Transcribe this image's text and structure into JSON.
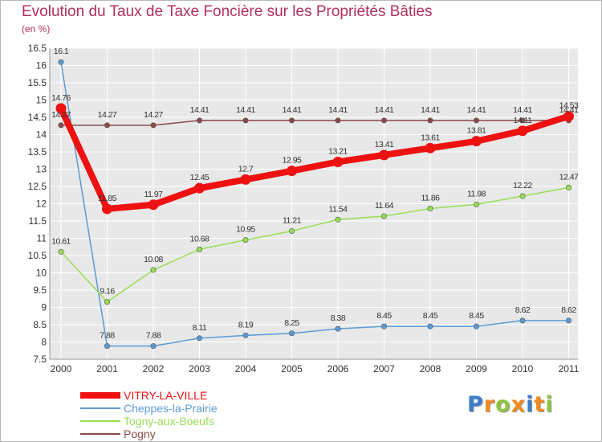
{
  "chart_data": {
    "type": "line",
    "title": "Evolution du Taux de Taxe Foncière sur les Propriétés Bâties",
    "ylabel": "(en %)",
    "xlabel": "",
    "x": [
      "2000",
      "2001",
      "2002",
      "2003",
      "2004",
      "2005",
      "2006",
      "2007",
      "2008",
      "2009",
      "2010",
      "2011"
    ],
    "ylim": [
      7.5,
      16.5
    ],
    "yticks": [
      7.5,
      8,
      8.5,
      9,
      9.5,
      10,
      10.5,
      11,
      11.5,
      12,
      12.5,
      13,
      13.5,
      14,
      14.5,
      15,
      15.5,
      16,
      16.5
    ],
    "ytick_labels": [
      "7.5",
      "8",
      "8.5",
      "9",
      "9.5",
      "10",
      "10.5",
      "11",
      "11.5",
      "12",
      "12.5",
      "13",
      "13.5",
      "14",
      "14.5",
      "15",
      "15.5",
      "16",
      "16.5"
    ],
    "grid": true,
    "series": [
      {
        "name": "VITRY-LA-VILLE",
        "color": "#ee1111",
        "values": [
          14.76,
          11.85,
          11.97,
          12.45,
          12.7,
          12.95,
          13.21,
          13.41,
          13.61,
          13.81,
          14.11,
          14.53
        ],
        "labels": [
          "14.76",
          "11.85",
          "11.97",
          "12.45",
          "12.7",
          "12.95",
          "13.21",
          "13.41",
          "13.61",
          "13.81",
          "14.11",
          "14.53"
        ]
      },
      {
        "name": "Cheppes-la-Prairie",
        "color": "#5b9bd5",
        "values": [
          16.1,
          7.88,
          7.88,
          8.11,
          8.19,
          8.25,
          8.38,
          8.45,
          8.45,
          8.45,
          8.62,
          8.62
        ],
        "labels": [
          "16.1",
          "7.88",
          "7.88",
          "8.11",
          "8.19",
          "8.25",
          "8.38",
          "8.45",
          "8.45",
          "8.45",
          "8.62",
          "8.62"
        ]
      },
      {
        "name": "Togny-aux-Boeufs",
        "color": "#99dd55",
        "values": [
          10.61,
          9.16,
          10.08,
          10.68,
          10.95,
          11.21,
          11.54,
          11.64,
          11.86,
          11.98,
          12.22,
          12.47
        ],
        "labels": [
          "10.61",
          "9.16",
          "10.08",
          "10.68",
          "10.95",
          "11.21",
          "11.54",
          "11.64",
          "11.86",
          "11.98",
          "12.22",
          "12.47"
        ]
      },
      {
        "name": "Pogny",
        "color": "#8b4a4a",
        "values": [
          14.27,
          14.27,
          14.27,
          14.41,
          14.41,
          14.41,
          14.41,
          14.41,
          14.41,
          14.41,
          14.41,
          14.41
        ],
        "labels": [
          "14.27",
          "14.27",
          "14.27",
          "14.41",
          "14.41",
          "14.41",
          "14.41",
          "14.41",
          "14.41",
          "14.41",
          "14.41",
          "14.41"
        ]
      }
    ]
  },
  "logo": {
    "letters": [
      "P",
      "r",
      "o",
      "x",
      "i",
      "t",
      "i"
    ],
    "colors": [
      "#3a7ec8",
      "#f08a1e",
      "#8cc63e",
      "#f08a1e",
      "#3a7ec8",
      "#f08a1e",
      "#8cc63e"
    ]
  }
}
